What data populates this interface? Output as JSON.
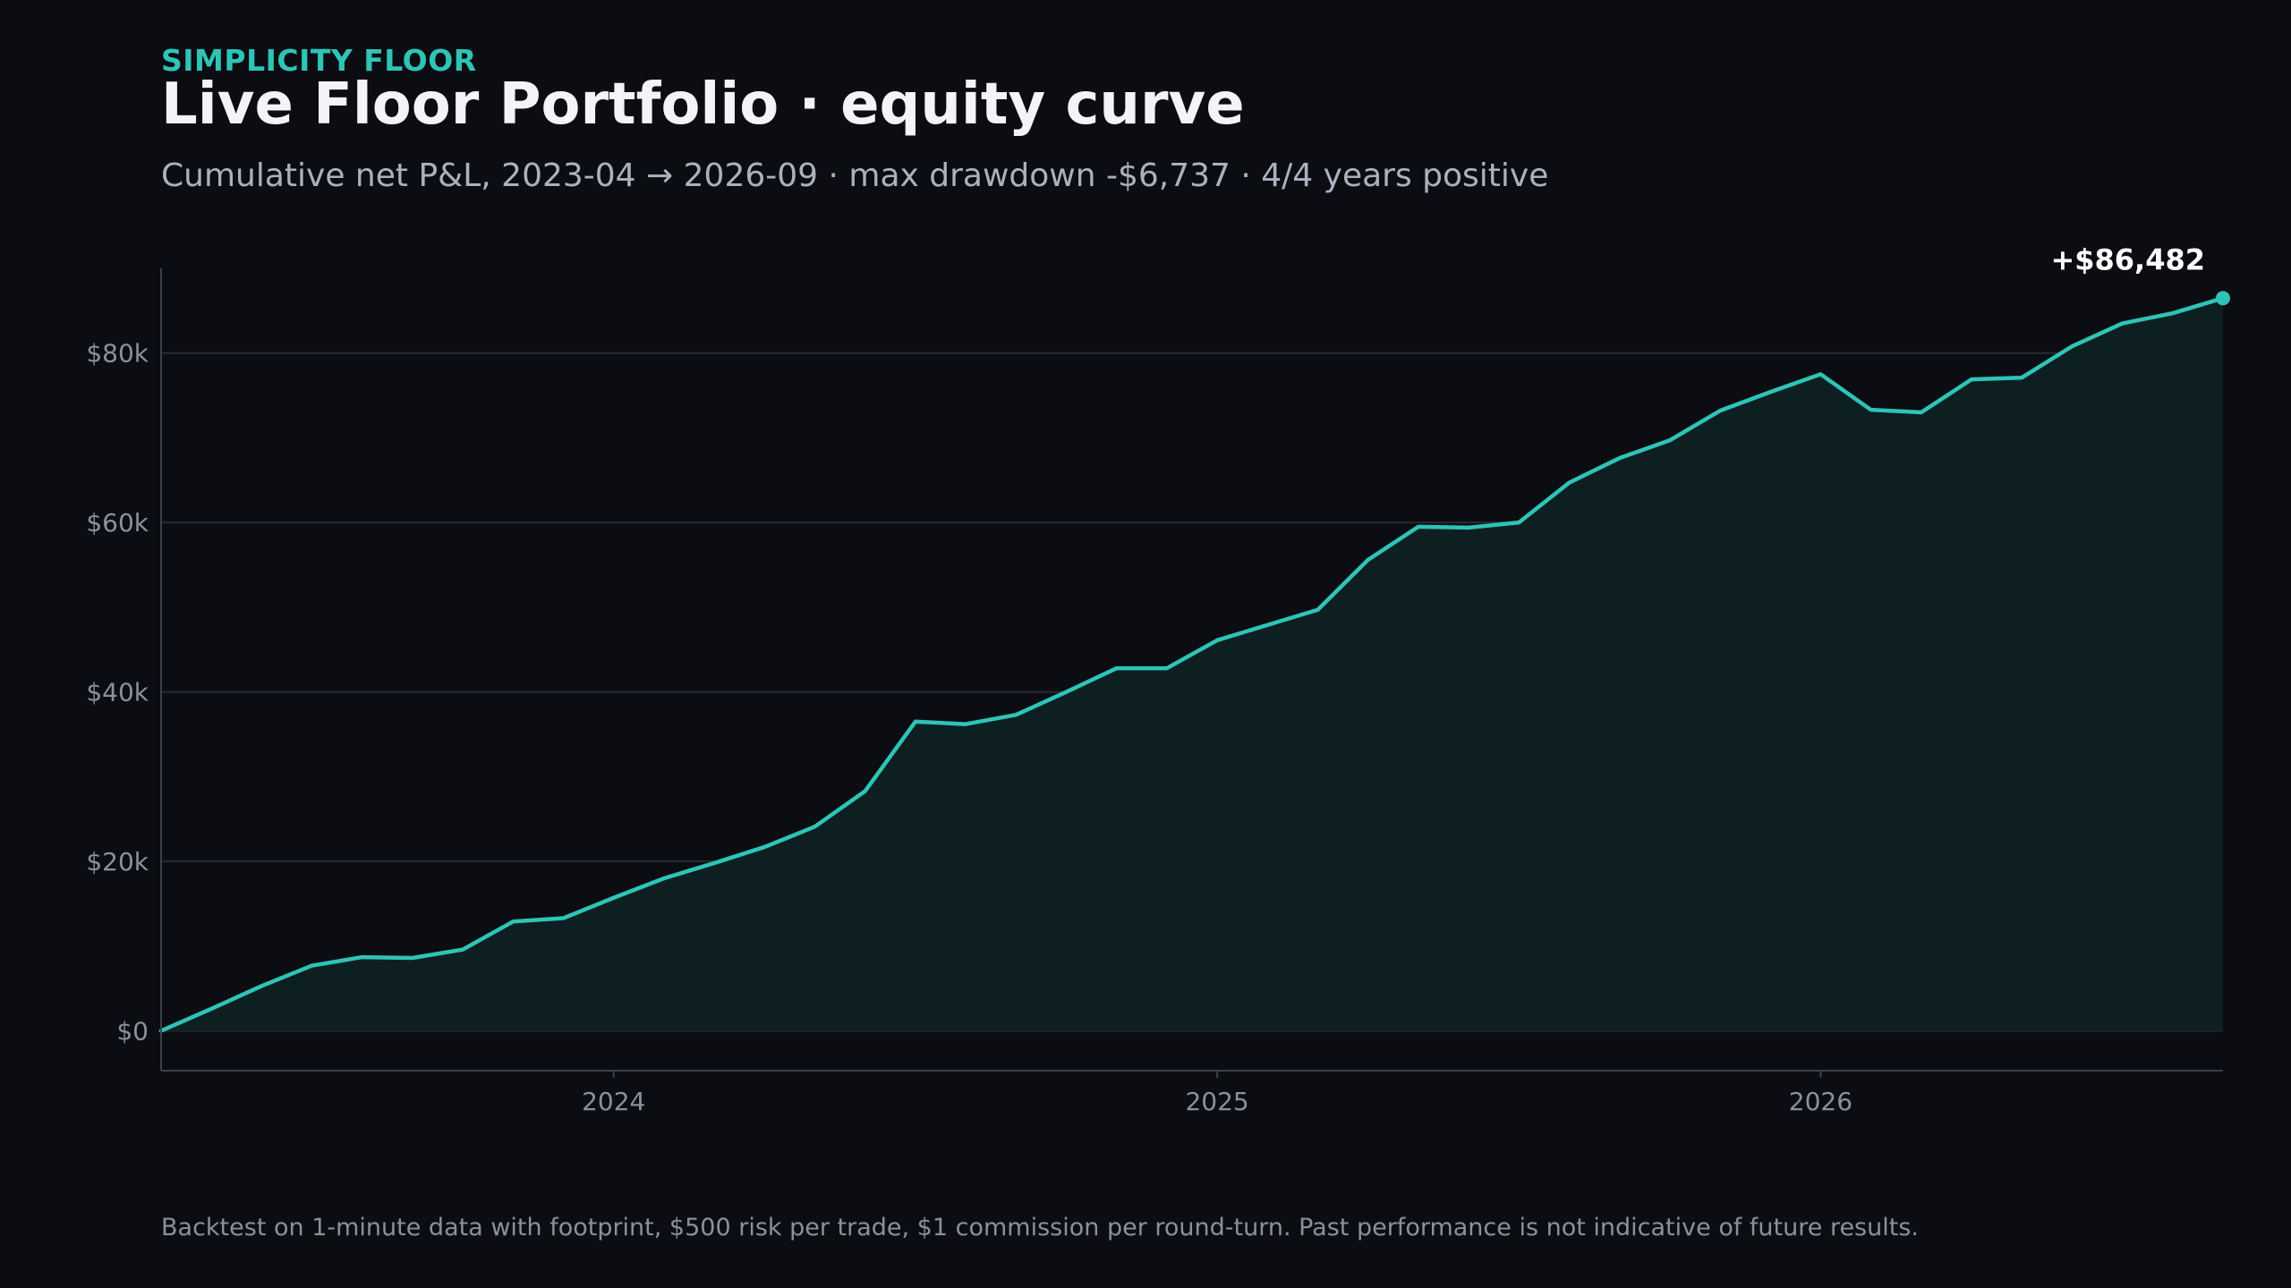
{
  "header": {
    "eyebrow": "SIMPLICITY FLOOR",
    "title": "Live Floor Portfolio · equity curve",
    "subtitle": "Cumulative net P&L, 2023-04 → 2026-09 · max drawdown -$6,737 · 4/4 years positive"
  },
  "footnote": "Backtest on 1-minute data with footprint, $500 risk per trade, $1 commission per round-turn. Past performance is not indicative of future results.",
  "colors": {
    "accent": "#2ec4b6",
    "background": "#0b0d12",
    "area_fill": "#0e1f22",
    "grid": "#262b33",
    "tick_label": "#8a919d"
  },
  "chart_data": {
    "type": "area",
    "x": [
      "2023-04",
      "2023-05",
      "2023-06",
      "2023-07",
      "2023-08",
      "2023-09",
      "2023-10",
      "2023-11",
      "2023-12",
      "2024-01",
      "2024-02",
      "2024-03",
      "2024-04",
      "2024-05",
      "2024-06",
      "2024-07",
      "2024-08",
      "2024-09",
      "2024-10",
      "2024-11",
      "2024-12",
      "2025-01",
      "2025-02",
      "2025-03",
      "2025-04",
      "2025-05",
      "2025-06",
      "2025-07",
      "2025-08",
      "2025-09",
      "2025-10",
      "2025-11",
      "2025-12",
      "2026-01",
      "2026-02",
      "2026-03",
      "2026-04",
      "2026-05",
      "2026-06",
      "2026-07",
      "2026-08",
      "2026-09"
    ],
    "series": [
      {
        "values": [
          0,
          2600,
          5300,
          7700,
          8700,
          8600,
          9600,
          12900,
          13300,
          15700,
          18000,
          19800,
          21700,
          24100,
          28300,
          36500,
          36200,
          37300,
          40000,
          42800,
          42800,
          46100,
          47900,
          49700,
          55600,
          59500,
          59400,
          60000,
          64700,
          67600,
          69700,
          73200,
          75400,
          77500,
          73300,
          73000,
          76900,
          77100,
          80800,
          83500,
          84700,
          86482
        ]
      }
    ],
    "final_label": "+$86,482",
    "x_ticks": [
      "2024",
      "2025",
      "2026"
    ],
    "x_tick_dates": [
      "2024-01",
      "2025-01",
      "2026-01"
    ],
    "y_ticks": [
      "$0",
      "$20k",
      "$40k",
      "$60k",
      "$80k"
    ],
    "y_tick_values": [
      0,
      20000,
      40000,
      60000,
      80000
    ],
    "ylim": [
      -4700,
      90000
    ],
    "grid": true,
    "legend": "none"
  }
}
